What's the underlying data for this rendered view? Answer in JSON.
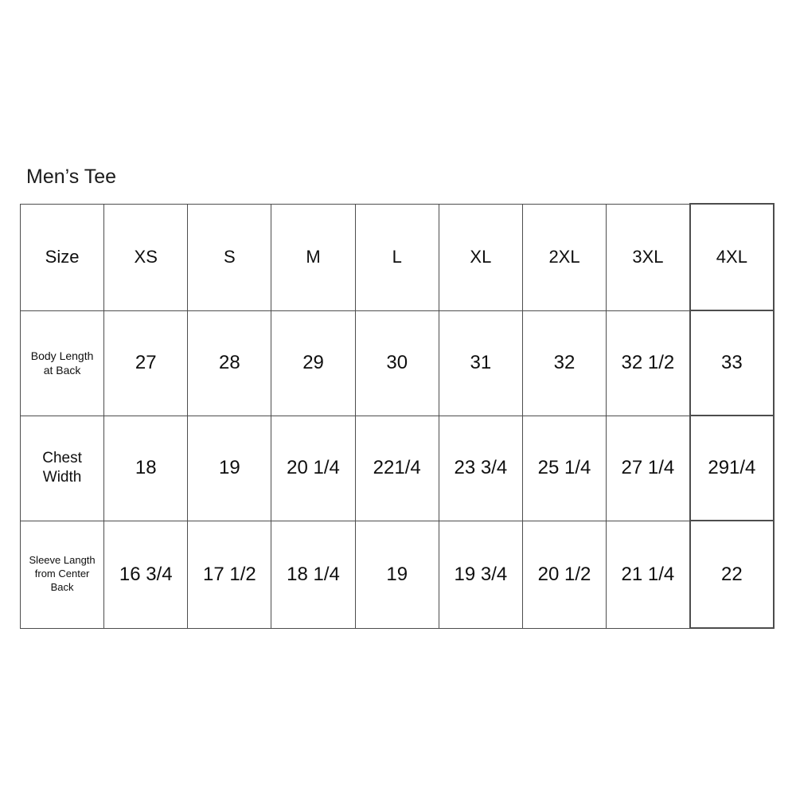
{
  "page": {
    "title": "Men’s Tee"
  },
  "colors": {
    "background": "#ffffff",
    "border": "#4d4d4d",
    "text": "#0f0f0f"
  },
  "table": {
    "header": [
      "Size",
      "XS",
      "S",
      "M",
      "L",
      "XL",
      "2XL",
      "3XL",
      "4XL"
    ],
    "rows": [
      {
        "label": "Body Length\nat Back",
        "values": [
          "27",
          "28",
          "29",
          "30",
          "31",
          "32",
          "32 1/2",
          "33"
        ]
      },
      {
        "label": "Chest\nWidth",
        "values": [
          "18",
          "19",
          "20 1/4",
          "221/4",
          "23 3/4",
          "25 1/4",
          "27 1/4",
          "291/4"
        ]
      },
      {
        "label": "Sleeve Langth\nfrom Center\nBack",
        "values": [
          "16 3/4",
          "17 1/2",
          "18 1/4",
          "19",
          "19 3/4",
          "20 1/2",
          "21 1/4",
          "22"
        ]
      }
    ]
  }
}
